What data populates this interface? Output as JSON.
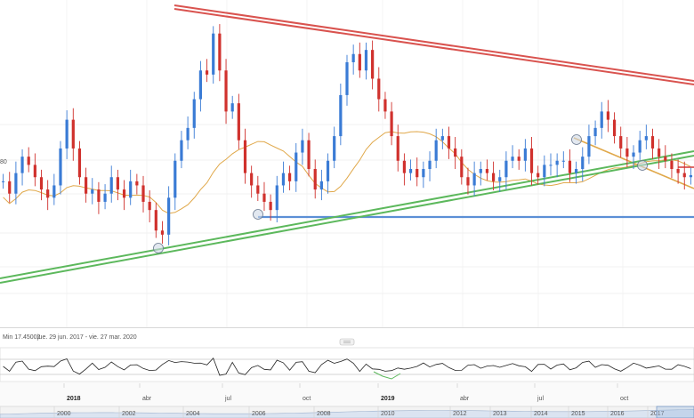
{
  "info": {
    "min_label": "Min 17.45002",
    "date_range": "jue. 29 jun. 2017 - vie. 27 mar. 2020",
    "partial_left_label": "80"
  },
  "timeline_labels": [
    "2018",
    "abr",
    "jul",
    "oct",
    "2019",
    "abr",
    "jul",
    "oct"
  ],
  "navigator_labels": [
    "2000",
    "2002",
    "2004",
    "2006",
    "2008",
    "2010",
    "2012",
    "2013",
    "2014",
    "2015",
    "2016",
    "2017"
  ],
  "colors": {
    "up_candle": "#3a7bd5",
    "down_candle": "#d0312d",
    "resistance_line": "#d9534f",
    "support_line": "#5cb85c",
    "horizontal_support": "#5b8fd6",
    "moving_average": "#e0a84a",
    "osc_line": "#222222"
  },
  "chart_data": {
    "type": "line",
    "title": "",
    "xlabel": "",
    "ylabel": "",
    "x_ticks": [
      "2018",
      "abr",
      "jul",
      "oct",
      "2019",
      "abr",
      "jul",
      "oct"
    ],
    "grid": true,
    "series": [
      {
        "values": [
          18.8,
          18.5,
          19.0,
          19.4,
          19.2,
          18.9,
          18.6,
          18.4,
          18.7,
          19.6,
          20.3,
          19.6,
          18.9,
          18.5,
          18.6,
          18.3,
          18.5,
          18.9,
          18.6,
          18.4,
          18.8,
          18.7,
          18.3,
          18.1,
          17.6,
          17.5,
          18.4,
          19.3,
          19.8,
          20.1,
          20.8,
          21.5,
          21.4,
          22.4,
          21.5,
          20.5,
          20.7,
          19.8,
          19.0,
          18.7,
          18.5,
          18.3,
          18.1,
          18.7,
          19.0,
          18.8,
          19.5,
          19.8,
          19.1,
          18.6,
          18.8,
          19.3,
          19.9,
          20.9,
          21.7,
          21.9,
          21.5,
          22.0,
          21.3,
          20.8,
          20.5,
          19.9,
          19.3,
          19.0,
          19.1,
          18.9,
          19.1,
          19.3,
          19.8,
          19.9,
          19.6,
          19.4,
          18.9,
          18.7,
          19.0,
          19.1,
          19.0,
          18.8,
          18.9,
          19.3,
          19.4,
          19.3,
          19.6,
          19.0,
          18.9,
          19.2,
          19.2,
          19.3,
          19.3,
          19.0,
          19.1,
          19.4,
          19.9,
          20.1,
          20.5,
          20.3,
          19.9,
          19.6,
          19.4,
          19.5,
          19.8,
          19.9,
          19.6,
          19.4,
          19.3,
          19.1,
          19.0,
          18.9,
          18.95
        ],
        "y_unit": "price"
      }
    ],
    "annotations": [
      "descending resistance trendline (red)",
      "ascending support trendline (green)",
      "horizontal support (blue)",
      "moving average (orange)",
      "oscillator panel"
    ]
  }
}
